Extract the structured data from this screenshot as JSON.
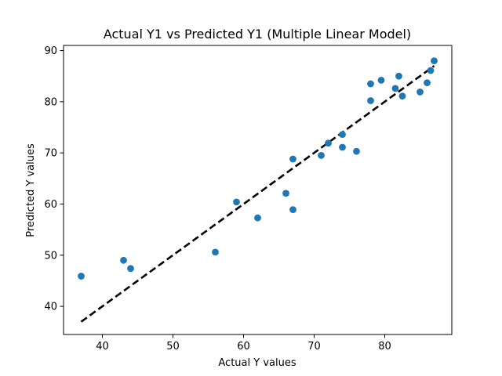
{
  "chart_data": {
    "type": "scatter",
    "title": "Actual Y1 vs Predicted Y1 (Multiple Linear Model)",
    "xlabel": "Actual Y values",
    "ylabel": "Predicted Y values",
    "xlim": [
      34.5,
      89.5
    ],
    "ylim": [
      34.5,
      91.0
    ],
    "xticks": [
      40,
      50,
      60,
      70,
      80
    ],
    "yticks": [
      40,
      50,
      60,
      70,
      80,
      90
    ],
    "grid": false,
    "point_color": "#1f77b4",
    "line_color": "#000000",
    "series": [
      {
        "points": [
          {
            "x": 37,
            "y": 45.9
          },
          {
            "x": 43,
            "y": 49.0
          },
          {
            "x": 44,
            "y": 47.4
          },
          {
            "x": 56,
            "y": 50.6
          },
          {
            "x": 59,
            "y": 60.4
          },
          {
            "x": 62,
            "y": 57.3
          },
          {
            "x": 66,
            "y": 62.1
          },
          {
            "x": 67,
            "y": 68.8
          },
          {
            "x": 67,
            "y": 58.9
          },
          {
            "x": 71,
            "y": 69.5
          },
          {
            "x": 72,
            "y": 71.9
          },
          {
            "x": 74,
            "y": 73.6
          },
          {
            "x": 74,
            "y": 71.1
          },
          {
            "x": 76,
            "y": 70.3
          },
          {
            "x": 78,
            "y": 83.5
          },
          {
            "x": 78,
            "y": 80.2
          },
          {
            "x": 79.5,
            "y": 84.2
          },
          {
            "x": 81.5,
            "y": 82.6
          },
          {
            "x": 82,
            "y": 85.0
          },
          {
            "x": 82.5,
            "y": 81.1
          },
          {
            "x": 85,
            "y": 81.9
          },
          {
            "x": 86,
            "y": 83.7
          },
          {
            "x": 86.5,
            "y": 86.1
          },
          {
            "x": 87,
            "y": 88.0
          }
        ]
      }
    ],
    "reference_line": {
      "style": "dashed",
      "from": [
        37,
        37
      ],
      "to": [
        87,
        87
      ]
    }
  }
}
